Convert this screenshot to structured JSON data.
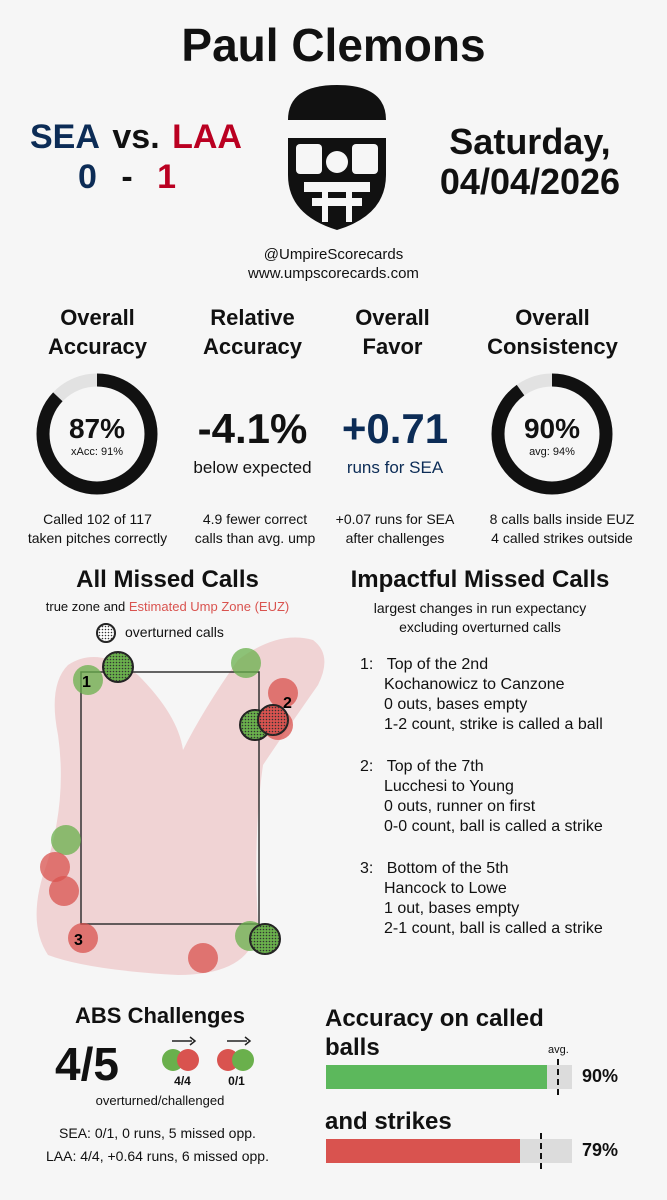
{
  "header": {
    "umpire_name": "Paul Clemons",
    "away_team": "SEA",
    "vs": "vs.",
    "home_team": "LAA",
    "away_score": "0",
    "dash": "-",
    "home_score": "1",
    "day": "Saturday,",
    "date": "04/04/2026",
    "handle": "@UmpireScorecards",
    "website": "www.umpscorecards.com"
  },
  "stats": {
    "overall_accuracy": {
      "title_line1": "Overall",
      "title_line2": "Accuracy",
      "value": "87%",
      "sub": "xAcc: 91%",
      "percent": 0.87,
      "note_line1": "Called 102 of 117",
      "note_line2": "taken pitches correctly"
    },
    "relative_accuracy": {
      "title_line1": "Relative",
      "title_line2": "Accuracy",
      "value": "-4.1%",
      "sub": "below expected",
      "note_line1": "4.9 fewer correct",
      "note_line2": "calls than avg. ump"
    },
    "overall_favor": {
      "title_line1": "Overall",
      "title_line2": "Favor",
      "value": "+0.71",
      "sub": "runs for SEA",
      "note_line1": "+0.07 runs for SEA",
      "note_line2": "after challenges"
    },
    "overall_consistency": {
      "title_line1": "Overall",
      "title_line2": "Consistency",
      "value": "90%",
      "sub": "avg: 94%",
      "percent": 0.9,
      "note_line1": "8 calls balls inside EUZ",
      "note_line2": "4 called strikes outside"
    }
  },
  "missed_calls": {
    "title": "All Missed Calls",
    "subtitle_part1": "true zone and ",
    "subtitle_part2": "Estimated Ump Zone (EUZ)",
    "legend": "overturned calls",
    "labels": [
      "1",
      "2",
      "3"
    ]
  },
  "impactful": {
    "title": "Impactful Missed Calls",
    "subtitle_line1": "largest changes in run expectancy",
    "subtitle_line2": "excluding overturned calls",
    "items": [
      {
        "num": "1:",
        "inning": "Top of the 2nd",
        "matchup": "Kochanowicz to Canzone",
        "state": "0 outs, bases empty",
        "call": "1-2 count, strike is called a ball"
      },
      {
        "num": "2:",
        "inning": "Top of the 7th",
        "matchup": "Lucchesi to Young",
        "state": "0 outs, runner on first",
        "call": "0-0 count, ball is called a strike"
      },
      {
        "num": "3:",
        "inning": "Bottom of the 5th",
        "matchup": "Hancock to Lowe",
        "state": "1 out, bases empty",
        "call": "2-1 count, ball is called a strike"
      }
    ]
  },
  "abs": {
    "title": "ABS Challenges",
    "big": "4/5",
    "left_ratio": "4/4",
    "right_ratio": "0/1",
    "caption": "overturned/challenged",
    "sea_line": "SEA: 0/1, 0 runs, 5 missed opp.",
    "laa_line": "LAA: 4/4, +0.64 runs, 6 missed opp."
  },
  "accuracy_bars": {
    "title_line1": "Accuracy on called",
    "title_line2": "balls",
    "avg_label": "avg.",
    "balls_value": "90%",
    "balls_fraction": 0.9,
    "balls_avg_fraction": 0.94,
    "strikes_title": "and strikes",
    "strikes_value": "79%",
    "strikes_fraction": 0.79,
    "strikes_avg_fraction": 0.87
  },
  "colors": {
    "navy": "#0c2c56",
    "red": "#ba0021",
    "green_dot": "#6ab04c",
    "red_dot": "#d9534f",
    "euz_fill": "#f0cfd0",
    "bar_green": "#5cb85c",
    "bar_red": "#d9534f"
  }
}
